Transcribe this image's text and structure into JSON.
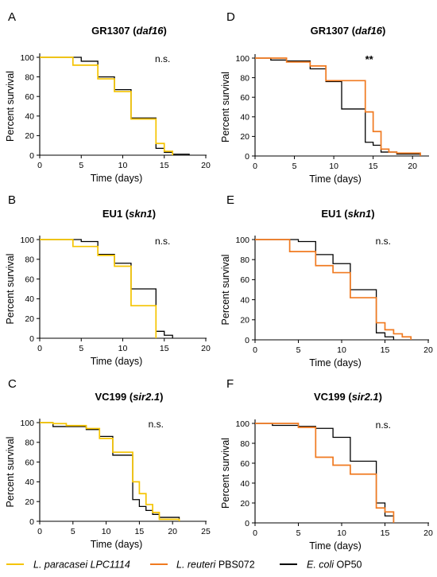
{
  "legend": {
    "items": [
      {
        "label_italic": "L. paracasei",
        "label_rest": " LPC1114",
        "color": "#F5C400",
        "italic_all": true
      },
      {
        "label_italic": "L. reuteri",
        "label_rest": " PBS072",
        "color": "#F07A20",
        "italic_all": false
      },
      {
        "label_italic": "E. coli",
        "label_rest": " OP50",
        "color": "#000000",
        "italic_all": false
      }
    ]
  },
  "colors": {
    "paracasei": "#F5C400",
    "reuteri": "#F07A20",
    "ecoli": "#000000"
  },
  "chart_data": [
    {
      "panel": "A",
      "type": "line",
      "step": "post",
      "title_main": "GR1307 (",
      "title_italic": "daf16",
      "title_end": ")",
      "xlabel": "Time (days)",
      "ylabel": "Percent survival",
      "xlim": [
        0,
        20
      ],
      "ylim": [
        0,
        100
      ],
      "xticks": [
        0,
        5,
        10,
        15,
        20
      ],
      "yticks": [
        0,
        20,
        40,
        60,
        80,
        100
      ],
      "annotation": "n.s.",
      "series": [
        {
          "key": "ecoli",
          "x": [
            0,
            5,
            7,
            9,
            11,
            14,
            15,
            16,
            18
          ],
          "y": [
            100,
            96,
            80,
            67,
            38,
            7,
            3,
            1,
            0
          ]
        },
        {
          "key": "paracasei",
          "x": [
            0,
            4,
            7,
            9,
            11,
            14,
            15,
            16
          ],
          "y": [
            100,
            92,
            78,
            65,
            37,
            12,
            4,
            0
          ]
        }
      ]
    },
    {
      "panel": "B",
      "type": "line",
      "step": "post",
      "title_main": "EU1 (",
      "title_italic": "skn1",
      "title_end": ")",
      "xlabel": "Time (days)",
      "ylabel": "Percent survival",
      "xlim": [
        0,
        20
      ],
      "ylim": [
        0,
        100
      ],
      "xticks": [
        0,
        5,
        10,
        15,
        20
      ],
      "yticks": [
        0,
        20,
        40,
        60,
        80,
        100
      ],
      "annotation": "n.s.",
      "series": [
        {
          "key": "ecoli",
          "x": [
            0,
            5,
            7,
            9,
            11,
            14,
            15,
            16
          ],
          "y": [
            100,
            98,
            85,
            76,
            50,
            7,
            3,
            0
          ]
        },
        {
          "key": "paracasei",
          "x": [
            0,
            4,
            7,
            9,
            11,
            14
          ],
          "y": [
            100,
            93,
            84,
            73,
            33,
            0
          ]
        }
      ]
    },
    {
      "panel": "C",
      "type": "line",
      "step": "post",
      "title_main": "VC199 (",
      "title_italic": "sir2.1",
      "title_end": ")",
      "xlabel": "Time (days)",
      "ylabel": "Percent survival",
      "xlim": [
        0,
        25
      ],
      "ylim": [
        0,
        100
      ],
      "xticks": [
        0,
        5,
        10,
        15,
        20,
        25
      ],
      "yticks": [
        0,
        20,
        40,
        60,
        80,
        100
      ],
      "annotation": "n.s.",
      "series": [
        {
          "key": "ecoli",
          "x": [
            0,
            2,
            7,
            9,
            11,
            14,
            15,
            16,
            17,
            18,
            21
          ],
          "y": [
            100,
            96,
            93,
            86,
            67,
            22,
            15,
            11,
            7,
            4,
            0
          ]
        },
        {
          "key": "paracasei",
          "x": [
            0,
            2,
            4,
            7,
            9,
            11,
            14,
            15,
            16,
            17,
            18,
            21
          ],
          "y": [
            100,
            99,
            97,
            94,
            84,
            70,
            40,
            28,
            17,
            9,
            2,
            0
          ]
        }
      ]
    },
    {
      "panel": "D",
      "type": "line",
      "step": "post",
      "title_main": "GR1307 (",
      "title_italic": "daf16",
      "title_end": ")",
      "xlabel": "Time (days)",
      "ylabel": "Percent survival",
      "xlim": [
        0,
        22
      ],
      "ylim": [
        0,
        100
      ],
      "xticks": [
        0,
        5,
        10,
        15,
        20
      ],
      "yticks": [
        0,
        20,
        40,
        60,
        80,
        100
      ],
      "annotation": "**",
      "series": [
        {
          "key": "ecoli",
          "x": [
            0,
            2,
            4,
            7,
            9,
            11,
            14,
            15,
            16,
            18,
            21
          ],
          "y": [
            100,
            98,
            97,
            89,
            76,
            48,
            14,
            11,
            4,
            2,
            0
          ]
        },
        {
          "key": "reuteri",
          "x": [
            0,
            4,
            7,
            9,
            14,
            15,
            16,
            17,
            18,
            21
          ],
          "y": [
            100,
            96,
            92,
            77,
            45,
            25,
            7,
            4,
            3,
            0
          ]
        }
      ]
    },
    {
      "panel": "E",
      "type": "line",
      "step": "post",
      "title_main": "EU1 (",
      "title_italic": "skn1",
      "title_end": ")",
      "xlabel": "Time (days)",
      "ylabel": "Percent survival",
      "xlim": [
        0,
        20
      ],
      "ylim": [
        0,
        100
      ],
      "xticks": [
        0,
        5,
        10,
        15,
        20
      ],
      "yticks": [
        0,
        20,
        40,
        60,
        80,
        100
      ],
      "annotation": "n.s.",
      "series": [
        {
          "key": "ecoli",
          "x": [
            0,
            5,
            7,
            9,
            11,
            14,
            15,
            16
          ],
          "y": [
            100,
            98,
            85,
            76,
            50,
            7,
            3,
            0
          ]
        },
        {
          "key": "reuteri",
          "x": [
            0,
            4,
            7,
            9,
            11,
            14,
            15,
            16,
            17,
            18
          ],
          "y": [
            100,
            88,
            74,
            67,
            42,
            17,
            10,
            6,
            3,
            0
          ]
        }
      ]
    },
    {
      "panel": "F",
      "type": "line",
      "step": "post",
      "title_main": "VC199 (",
      "title_italic": "sir2.1",
      "title_end": ")",
      "xlabel": "Time (days)",
      "ylabel": "Percent survival",
      "xlim": [
        0,
        20
      ],
      "ylim": [
        0,
        100
      ],
      "xticks": [
        0,
        5,
        10,
        15,
        20
      ],
      "yticks": [
        0,
        20,
        40,
        60,
        80,
        100
      ],
      "annotation": "n.s.",
      "series": [
        {
          "key": "ecoli",
          "x": [
            0,
            2,
            5,
            7,
            9,
            11,
            14,
            15,
            16
          ],
          "y": [
            100,
            98,
            97,
            95,
            86,
            62,
            20,
            7,
            0
          ]
        },
        {
          "key": "reuteri",
          "x": [
            0,
            5,
            7,
            9,
            11,
            14,
            15,
            16
          ],
          "y": [
            100,
            96,
            66,
            58,
            49,
            15,
            11,
            0
          ]
        }
      ]
    }
  ]
}
